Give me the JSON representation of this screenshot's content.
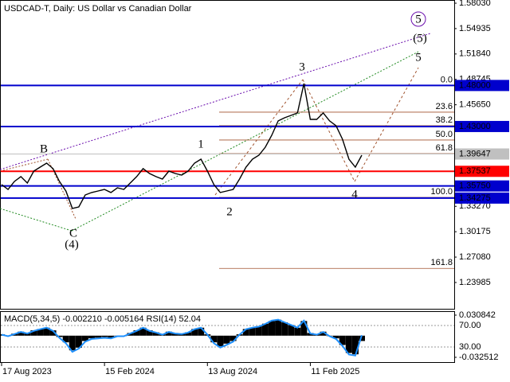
{
  "chart_data": [
    {
      "type": "line",
      "title": "USDCAD-T, Daily:  US Dollar vs Canadian Dollar",
      "categories": [
        "17 Aug 2023",
        null,
        null,
        null,
        null,
        null,
        null,
        null,
        null,
        null,
        null,
        null,
        null,
        null,
        null,
        null,
        "15 Feb 2024",
        null,
        null,
        null,
        null,
        null,
        null,
        null,
        null,
        null,
        null,
        null,
        null,
        null,
        null,
        null,
        "13 Aug 2024",
        null,
        null,
        null,
        null,
        null,
        null,
        null,
        null,
        null,
        null,
        null,
        null,
        null,
        null,
        null,
        "11 Feb 2025",
        null,
        null,
        null,
        null,
        null,
        null,
        null,
        null
      ],
      "series": [
        {
          "color": "#000000",
          "values": [
            1.3592,
            1.3533,
            1.363,
            1.3689,
            1.3611,
            1.3756,
            1.3805,
            1.3853,
            1.3786,
            1.363,
            1.3514,
            1.3301,
            1.332,
            1.3465,
            1.3495,
            1.3514,
            1.3533,
            1.3495,
            1.3553,
            1.3533,
            1.3611,
            1.3689,
            1.3786,
            1.3727,
            1.3689,
            1.3659,
            1.3756,
            1.3727,
            1.3708,
            1.3756,
            1.3853,
            1.3902,
            1.3756,
            1.3592,
            1.3495,
            1.3514,
            1.3533,
            1.3659,
            1.3805,
            1.3902,
            1.395,
            1.4047,
            1.4193,
            1.4368,
            1.4406,
            1.4435,
            1.4465,
            1.4823,
            1.4387,
            1.4387,
            1.4465,
            1.4368,
            1.4309,
            1.4144,
            1.3902,
            1.3805,
            1.395
          ]
        }
      ],
      "ylim": [
        1.2078,
        1.5842
      ],
      "yticks": [
        {
          "value": 1.5803,
          "label": "1.58030"
        },
        {
          "value": 1.54935,
          "label": "1.54935"
        },
        {
          "value": 1.5184,
          "label": "1.51840"
        },
        {
          "value": 1.48745,
          "label": "1.48745"
        },
        {
          "value": 1.4565,
          "label": "1.45650"
        },
        {
          "value": 1.3327,
          "label": "1.33270"
        },
        {
          "value": 1.30175,
          "label": "1.30175"
        },
        {
          "value": 1.2708,
          "label": "1.27080"
        },
        {
          "value": 1.23985,
          "label": "1.23985"
        }
      ],
      "levels": [
        {
          "value": 1.48,
          "label": "1.48000",
          "color": "#0000cd"
        },
        {
          "value": 1.43,
          "label": "1.43000",
          "color": "#0000cd"
        },
        {
          "value": 1.39647,
          "label": "1.39647",
          "color": "#c0c0c0"
        },
        {
          "value": 1.37537,
          "label": "1.37537",
          "color": "#ff0000"
        },
        {
          "value": 1.3575,
          "label": "1.35750",
          "color": "#0000cd"
        },
        {
          "value": 1.34275,
          "label": "1.34275",
          "color": "#0000cd"
        }
      ],
      "fib_levels": [
        {
          "value": 1.48,
          "label": "0.0"
        },
        {
          "value": 1.4475,
          "label": "23.6"
        },
        {
          "value": 1.431,
          "label": "38.2"
        },
        {
          "value": 1.4135,
          "label": "50.0"
        },
        {
          "value": 1.397,
          "label": "61.8"
        },
        {
          "value": 1.3436,
          "label": "100.0"
        },
        {
          "value": 1.257,
          "label": "161.8"
        }
      ],
      "fib_color": "#a0522d",
      "wave_labels": [
        "B",
        "C",
        "(4)",
        "1",
        "2",
        "3",
        "4",
        "5",
        "(5)",
        "5"
      ]
    },
    {
      "type": "macd",
      "title": "MACD(5,34,5) -0.002210 -0.005164 RSI(14) 52.04",
      "series": [
        {
          "color": "#000000",
          "values": [
            0.002,
            0,
            0.003,
            0.006,
            0.004,
            0.008,
            0.01,
            0.012,
            0.008,
            -0.002,
            -0.01,
            -0.022,
            -0.018,
            -0.008,
            -0.004,
            -0.003,
            -0.002,
            -0.003,
            0,
            0,
            0.004,
            0.008,
            0.012,
            0.008,
            0.005,
            0.002,
            0.006,
            0.004,
            0.003,
            0.005,
            0.01,
            0.012,
            0.002,
            -0.01,
            -0.016,
            -0.012,
            -0.008,
            0.002,
            0.01,
            0.012,
            0.014,
            0.018,
            0.022,
            0.024,
            0.02,
            0.016,
            0.012,
            0.022,
            0.004,
            0.002,
            0.006,
            0,
            -0.004,
            -0.014,
            -0.026,
            -0.028,
            -0.008
          ]
        },
        {
          "color": "#1e90ff",
          "axis": "y2",
          "values": [
            53,
            50,
            54,
            58,
            55,
            60,
            63,
            66,
            60,
            47,
            37,
            21,
            27,
            40,
            45,
            46,
            47,
            46,
            50,
            50,
            55,
            60,
            66,
            60,
            57,
            53,
            58,
            55,
            54,
            57,
            63,
            66,
            53,
            37,
            29,
            34,
            40,
            53,
            63,
            66,
            68,
            73,
            79,
            81,
            76,
            71,
            66,
            79,
            55,
            53,
            58,
            50,
            45,
            32,
            16,
            14,
            52
          ]
        }
      ],
      "ylim": [
        -0.0409,
        0.0356
      ],
      "yticks": [
        {
          "value": 0.030842,
          "label": "0.030842"
        },
        {
          "value": -0.032512,
          "label": "-0.032512"
        }
      ],
      "y2lim": [
        0.4,
        95.2
      ],
      "y2ticks": [
        {
          "value": 70,
          "label": "70.00"
        },
        {
          "value": 30,
          "label": "30.00"
        }
      ]
    }
  ]
}
